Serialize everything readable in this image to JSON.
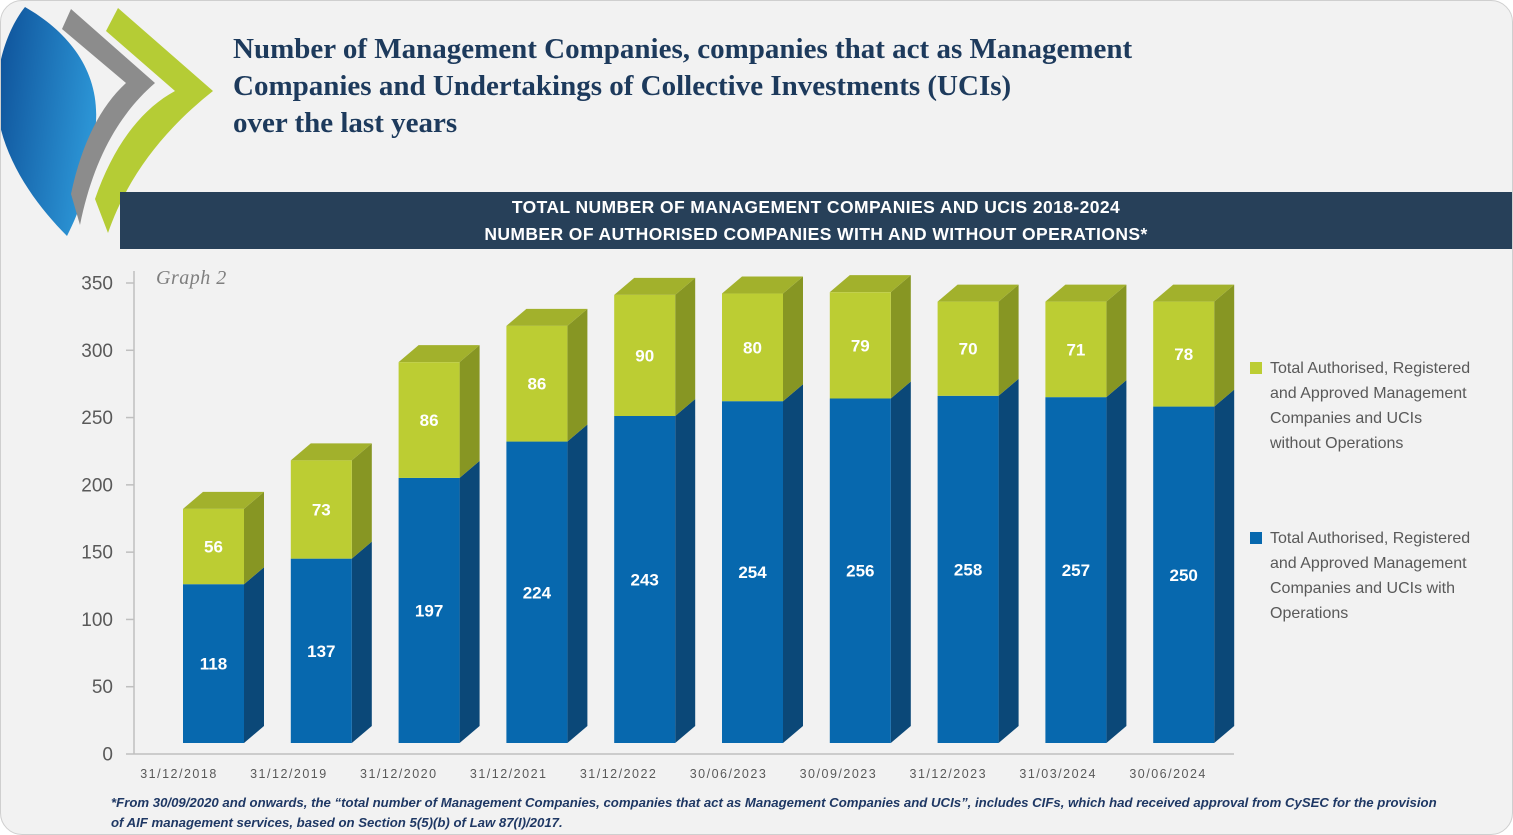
{
  "header": {
    "logo_name": "chevron-arrows-logo",
    "title": "Number of Management Companies, companies that act as Management\nCompanies and Undertakings of Collective Investments (UCIs)\nover the last years"
  },
  "chart_data": {
    "type": "bar",
    "stacked": true,
    "graph_label": "Graph 2",
    "title_lines": [
      "TOTAL NUMBER OF MANAGEMENT COMPANIES AND UCIS 2018-2024",
      "NUMBER OF AUTHORISED COMPANIES WITH AND WITHOUT OPERATIONS*"
    ],
    "categories": [
      "31/12/2018",
      "31/12/2019",
      "31/12/2020",
      "31/12/2021",
      "31/12/2022",
      "30/06/2023",
      "30/09/2023",
      "31/12/2023",
      "31/03/2024",
      "30/06/2024"
    ],
    "series": [
      {
        "name": "Total Authorised, Registered and Approved Management Companies and UCIs with Operations",
        "color": "#0768ae",
        "side_color": "#0b4878",
        "values": [
          118,
          137,
          197,
          224,
          243,
          254,
          256,
          258,
          257,
          250
        ]
      },
      {
        "name": "Total Authorised, Registered and Approved Management Companies and UCIs without Operations",
        "color": "#bccd33",
        "side_color": "#879623",
        "top_color": "#a2b12c",
        "values": [
          56,
          73,
          86,
          86,
          90,
          80,
          79,
          70,
          71,
          78
        ]
      }
    ],
    "ylim": [
      0,
      350
    ],
    "ytick_step": 50,
    "grid": false,
    "legend_position": "right",
    "value_label_color": "#ffffff",
    "axis_text_color": "#595959"
  },
  "legend": {
    "items": [
      {
        "swatch_color": "#bccd33",
        "label": "Total Authorised, Registered\nand Approved Management\nCompanies and UCIs\nwithout Operations"
      },
      {
        "swatch_color": "#0768ae",
        "label": "Total Authorised, Registered\nand Approved Management\nCompanies and UCIs with\nOperations"
      }
    ]
  },
  "footnote": "*From 30/09/2020 and onwards, the “total number of Management Companies, companies that act as Management Companies and UCIs”, includes CIFs, which had received approval from CySEC for the provision\nof AIF management services, based on Section 5(5)(b) of Law 87(I)/2017."
}
